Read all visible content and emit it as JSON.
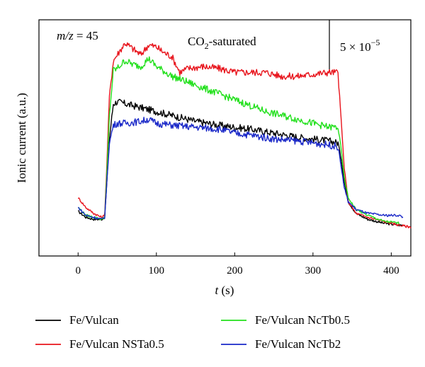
{
  "chart_data": {
    "type": "line",
    "xlabel_var": "t",
    "xlabel_unit": " (s)",
    "ylabel": "Ionic current (a.u.)",
    "xlim": [
      -50,
      425
    ],
    "x_ticks": [
      0,
      100,
      200,
      300,
      400
    ],
    "grid": false,
    "legend_position": "bottom",
    "annotations": {
      "mz_var": "m/z",
      "mz_value": " = 45",
      "condition_main": "CO",
      "condition_sub": "2",
      "condition_rest": "-saturated",
      "scale_base": "5 × 10",
      "scale_exp": "−5"
    },
    "series": [
      {
        "name": "Fe/Vulcan",
        "color": "#000000",
        "points": [
          [
            0,
            0.13
          ],
          [
            10,
            0.1
          ],
          [
            20,
            0.09
          ],
          [
            30,
            0.09
          ],
          [
            34,
            0.1
          ],
          [
            37,
            0.3
          ],
          [
            40,
            0.5
          ],
          [
            45,
            0.68
          ],
          [
            50,
            0.69
          ],
          [
            60,
            0.68
          ],
          [
            70,
            0.67
          ],
          [
            80,
            0.66
          ],
          [
            100,
            0.64
          ],
          [
            120,
            0.62
          ],
          [
            150,
            0.59
          ],
          [
            180,
            0.57
          ],
          [
            200,
            0.56
          ],
          [
            220,
            0.55
          ],
          [
            250,
            0.53
          ],
          [
            280,
            0.51
          ],
          [
            300,
            0.5
          ],
          [
            320,
            0.49
          ],
          [
            332,
            0.48
          ],
          [
            336,
            0.4
          ],
          [
            340,
            0.28
          ],
          [
            345,
            0.18
          ],
          [
            355,
            0.12
          ],
          [
            370,
            0.09
          ],
          [
            390,
            0.07
          ],
          [
            410,
            0.06
          ],
          [
            415,
            0.06
          ]
        ]
      },
      {
        "name": "Fe/Vulcan NSTa0.5",
        "color": "#e8141c",
        "points": [
          [
            0,
            0.2
          ],
          [
            10,
            0.15
          ],
          [
            20,
            0.12
          ],
          [
            30,
            0.1
          ],
          [
            34,
            0.11
          ],
          [
            37,
            0.4
          ],
          [
            40,
            0.72
          ],
          [
            45,
            0.9
          ],
          [
            50,
            0.93
          ],
          [
            60,
            0.99
          ],
          [
            70,
            0.96
          ],
          [
            80,
            0.93
          ],
          [
            90,
            0.98
          ],
          [
            100,
            0.97
          ],
          [
            110,
            0.94
          ],
          [
            120,
            0.92
          ],
          [
            130,
            0.84
          ],
          [
            140,
            0.86
          ],
          [
            160,
            0.87
          ],
          [
            180,
            0.86
          ],
          [
            200,
            0.84
          ],
          [
            220,
            0.84
          ],
          [
            240,
            0.84
          ],
          [
            260,
            0.82
          ],
          [
            280,
            0.82
          ],
          [
            300,
            0.83
          ],
          [
            320,
            0.84
          ],
          [
            332,
            0.84
          ],
          [
            336,
            0.6
          ],
          [
            340,
            0.35
          ],
          [
            345,
            0.18
          ],
          [
            355,
            0.12
          ],
          [
            370,
            0.1
          ],
          [
            390,
            0.08
          ],
          [
            410,
            0.06
          ],
          [
            425,
            0.05
          ]
        ]
      },
      {
        "name": "Fe/Vulcan NcTb0.5",
        "color": "#22e01c",
        "points": [
          [
            0,
            0.15
          ],
          [
            10,
            0.11
          ],
          [
            20,
            0.1
          ],
          [
            30,
            0.09
          ],
          [
            34,
            0.1
          ],
          [
            37,
            0.35
          ],
          [
            40,
            0.62
          ],
          [
            45,
            0.85
          ],
          [
            50,
            0.86
          ],
          [
            60,
            0.9
          ],
          [
            70,
            0.88
          ],
          [
            80,
            0.87
          ],
          [
            90,
            0.91
          ],
          [
            100,
            0.87
          ],
          [
            120,
            0.82
          ],
          [
            140,
            0.79
          ],
          [
            160,
            0.76
          ],
          [
            180,
            0.73
          ],
          [
            200,
            0.7
          ],
          [
            220,
            0.67
          ],
          [
            240,
            0.64
          ],
          [
            260,
            0.62
          ],
          [
            280,
            0.6
          ],
          [
            300,
            0.58
          ],
          [
            320,
            0.56
          ],
          [
            332,
            0.56
          ],
          [
            336,
            0.45
          ],
          [
            340,
            0.3
          ],
          [
            345,
            0.2
          ],
          [
            355,
            0.14
          ],
          [
            370,
            0.11
          ],
          [
            390,
            0.08
          ],
          [
            410,
            0.07
          ]
        ]
      },
      {
        "name": "Fe/Vulcan NcTb2",
        "color": "#1a28c8",
        "points": [
          [
            0,
            0.15
          ],
          [
            10,
            0.11
          ],
          [
            20,
            0.1
          ],
          [
            30,
            0.09
          ],
          [
            34,
            0.1
          ],
          [
            37,
            0.3
          ],
          [
            40,
            0.48
          ],
          [
            45,
            0.57
          ],
          [
            50,
            0.58
          ],
          [
            60,
            0.58
          ],
          [
            80,
            0.59
          ],
          [
            90,
            0.6
          ],
          [
            100,
            0.58
          ],
          [
            120,
            0.57
          ],
          [
            150,
            0.56
          ],
          [
            180,
            0.55
          ],
          [
            200,
            0.53
          ],
          [
            220,
            0.52
          ],
          [
            250,
            0.5
          ],
          [
            280,
            0.49
          ],
          [
            300,
            0.48
          ],
          [
            320,
            0.47
          ],
          [
            332,
            0.46
          ],
          [
            336,
            0.36
          ],
          [
            340,
            0.25
          ],
          [
            345,
            0.18
          ],
          [
            355,
            0.14
          ],
          [
            370,
            0.12
          ],
          [
            390,
            0.11
          ],
          [
            410,
            0.11
          ],
          [
            415,
            0.1
          ]
        ]
      }
    ]
  }
}
